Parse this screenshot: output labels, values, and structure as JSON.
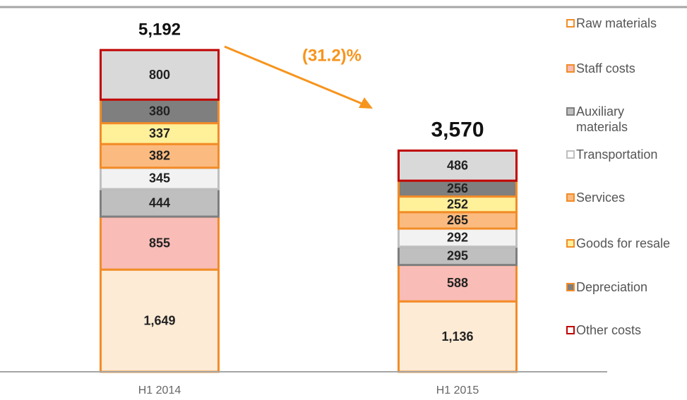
{
  "chart_data": {
    "type": "stacked_bar",
    "categories": [
      "H1 2014",
      "H1 2015"
    ],
    "series": [
      {
        "name": "Raw materials",
        "color": "#fdebd5",
        "edgecolor": "#f28c28",
        "values": [
          1649,
          1136
        ],
        "value_labels": [
          "1,649",
          "1,136"
        ]
      },
      {
        "name": "Staff costs",
        "color": "#f9bcb6",
        "edgecolor": "#f28c28",
        "values": [
          855,
          588
        ]
      },
      {
        "name": "Auxiliary materials",
        "color": "#bfbfbf",
        "edgecolor": "#7f7f7f",
        "values": [
          444,
          295
        ]
      },
      {
        "name": "Transportation",
        "color": "#f2f2f2",
        "edgecolor": "#bfbfbf",
        "values": [
          345,
          292
        ]
      },
      {
        "name": "Services",
        "color": "#fbbb80",
        "edgecolor": "#f28c28",
        "values": [
          382,
          265
        ]
      },
      {
        "name": "Goods for resale",
        "color": "#fff09a",
        "edgecolor": "#f28c28",
        "values": [
          337,
          252
        ]
      },
      {
        "name": "Depreciation",
        "color": "#7f7f7f",
        "edgecolor": "#f28c28",
        "values": [
          380,
          256
        ]
      },
      {
        "name": "Other costs",
        "color": "#d9d9d9",
        "edgecolor": "#c00000",
        "values": [
          800,
          486
        ]
      }
    ],
    "totals": [
      5192,
      3570
    ],
    "total_labels": [
      "5,192",
      "3,570"
    ],
    "annotation": "(31.2)%",
    "ylim": [
      0,
      6000
    ]
  }
}
